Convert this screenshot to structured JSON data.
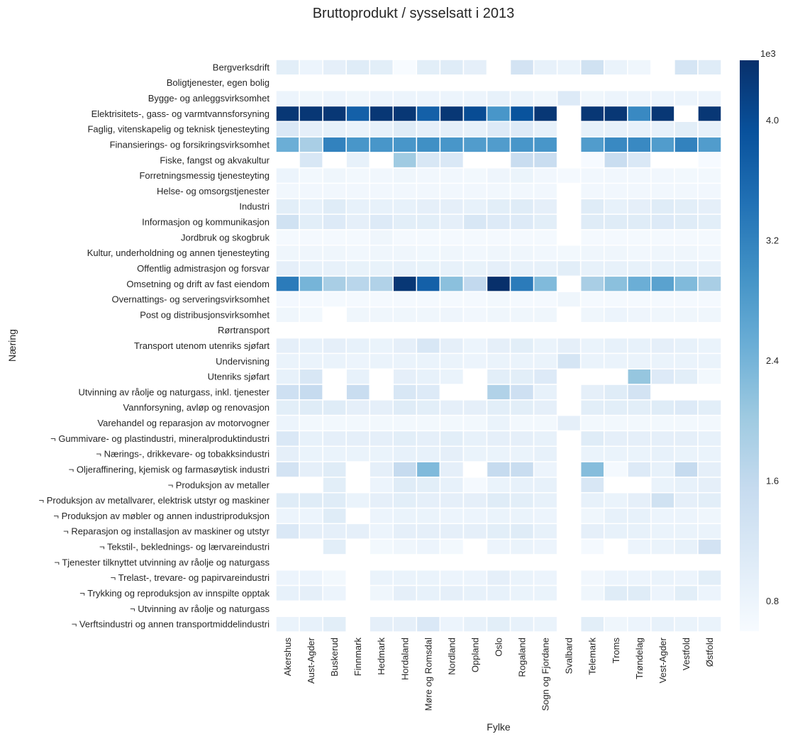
{
  "chart_data": {
    "type": "heatmap",
    "title": "Bruttoprodukt / sysselsatt i 2013",
    "xlabel": "Fylke",
    "ylabel": "Næring",
    "x": [
      "Akershus",
      "Aust-Agder",
      "Buskerud",
      "Finnmark",
      "Hedmark",
      "Hordaland",
      "Møre og Romsdal",
      "Nordland",
      "Oppland",
      "Oslo",
      "Rogaland",
      "Sogn og Fjordane",
      "Svalbard",
      "Telemark",
      "Troms",
      "Trøndelag",
      "Vest-Agder",
      "Vestfold",
      "Østfold"
    ],
    "y": [
      "Bergverksdrift",
      "Boligtjenester, egen bolig",
      "Bygge- og anleggsvirksomhet",
      "Elektrisitets-, gass- og varmtvannsforsyning",
      "Faglig, vitenskapelig og teknisk tjenesteyting",
      "Finansierings- og forsikringsvirksomhet",
      "Fiske, fangst og akvakultur",
      "Forretningsmessig tjenesteyting",
      "Helse- og omsorgstjenester",
      "Industri",
      "Informasjon og kommunikasjon",
      "Jordbruk og skogbruk",
      "Kultur, underholdning og annen tjenesteyting",
      "Offentlig admistrasjon og forsvar",
      "Omsetning og drift av fast eiendom",
      "Overnattings- og serveringsvirksomhet",
      "Post og distribusjonsvirksomhet",
      "Rørtransport",
      "Transport utenom utenriks sjøfart",
      "Undervisning",
      "Utenriks sjøfart",
      "Utvinning av råolje og naturgass, inkl. tjenester",
      "Vannforsyning, avløp og renovasjon",
      "Varehandel og reparasjon av motorvogner",
      "¬ Gummivare- og plastindustri, mineralproduktindustri",
      "¬ Nærings-, drikkevare- og tobakksindustri",
      "¬ Oljeraffinering, kjemisk og farmasøytisk industri",
      "¬ Produksjon av metaller",
      "¬ Produksjon av metallvarer, elektrisk utstyr og maskiner",
      "¬ Produksjon av møbler og annen industriproduksjon",
      "¬ Reparasjon og installasjon av maskiner og utstyr",
      "¬ Tekstil-, beklednings- og lærvareindustri",
      "¬ Tjenester tilknyttet utvinning av råolje og naturgass",
      "¬ Trelast-, trevare- og papirvareindustri",
      "¬ Trykking og reproduksjon av innspilte opptak",
      "¬ Utvinning av råolje og naturgass",
      "¬ Verftsindustri og annen transportmiddelindustri"
    ],
    "values": [
      [
        1000,
        800,
        950,
        1050,
        1000,
        600,
        1000,
        1050,
        950,
        null,
        1300,
        900,
        850,
        1350,
        850,
        750,
        null,
        1250,
        1050
      ],
      [
        null,
        null,
        null,
        null,
        null,
        null,
        null,
        null,
        null,
        null,
        null,
        null,
        null,
        null,
        null,
        null,
        null,
        null,
        null
      ],
      [
        800,
        750,
        800,
        750,
        800,
        800,
        800,
        800,
        800,
        900,
        850,
        750,
        1100,
        750,
        800,
        800,
        800,
        800,
        800
      ],
      [
        4300,
        4300,
        4300,
        3700,
        4300,
        4300,
        3700,
        4300,
        4000,
        2900,
        3900,
        4300,
        null,
        4300,
        4300,
        3100,
        4300,
        null,
        4300
      ],
      [
        1150,
        950,
        900,
        850,
        900,
        1050,
        950,
        950,
        900,
        1100,
        1100,
        900,
        null,
        900,
        900,
        900,
        900,
        1000,
        900
      ],
      [
        2500,
        1900,
        3200,
        2900,
        2900,
        2900,
        3000,
        2900,
        2800,
        2800,
        2900,
        2900,
        null,
        2800,
        3100,
        3100,
        2800,
        3200,
        2800
      ],
      [
        null,
        1200,
        null,
        900,
        null,
        2000,
        1200,
        1150,
        null,
        null,
        1500,
        1500,
        null,
        620,
        1500,
        1150,
        null,
        null,
        620
      ],
      [
        800,
        700,
        750,
        700,
        720,
        750,
        720,
        720,
        700,
        770,
        820,
        720,
        650,
        720,
        720,
        720,
        720,
        700,
        700
      ],
      [
        720,
        720,
        720,
        720,
        720,
        720,
        720,
        720,
        720,
        720,
        720,
        720,
        null,
        720,
        720,
        720,
        720,
        720,
        720
      ],
      [
        1000,
        900,
        1050,
        900,
        900,
        900,
        950,
        950,
        900,
        1000,
        1050,
        950,
        null,
        1050,
        900,
        950,
        1050,
        1000,
        950
      ],
      [
        1350,
        1000,
        1100,
        950,
        1100,
        1000,
        1000,
        950,
        1200,
        1100,
        1100,
        1000,
        null,
        1050,
        1050,
        1050,
        1100,
        1050,
        1000
      ],
      [
        650,
        650,
        650,
        650,
        750,
        650,
        650,
        650,
        650,
        650,
        650,
        650,
        null,
        650,
        650,
        650,
        650,
        650,
        650
      ],
      [
        750,
        750,
        750,
        720,
        750,
        750,
        730,
        750,
        720,
        750,
        750,
        720,
        700,
        750,
        750,
        720,
        750,
        750,
        720
      ],
      [
        950,
        900,
        900,
        880,
        880,
        900,
        880,
        900,
        880,
        950,
        900,
        900,
        1000,
        900,
        900,
        900,
        900,
        900,
        900
      ],
      [
        3300,
        2400,
        1900,
        1700,
        1800,
        4300,
        3700,
        2200,
        1600,
        4400,
        3300,
        2300,
        null,
        1900,
        2200,
        2500,
        2700,
        2300,
        1900
      ],
      [
        680,
        650,
        650,
        650,
        650,
        650,
        650,
        650,
        650,
        700,
        650,
        650,
        750,
        650,
        650,
        650,
        650,
        650,
        650
      ],
      [
        750,
        700,
        null,
        750,
        750,
        750,
        750,
        780,
        720,
        750,
        750,
        750,
        null,
        750,
        800,
        780,
        760,
        750,
        750
      ],
      [
        null,
        null,
        null,
        null,
        null,
        null,
        null,
        null,
        null,
        null,
        null,
        null,
        null,
        null,
        null,
        null,
        null,
        null,
        null
      ],
      [
        950,
        900,
        950,
        900,
        850,
        950,
        1200,
        950,
        800,
        950,
        1000,
        850,
        950,
        850,
        900,
        900,
        950,
        900,
        850
      ],
      [
        850,
        850,
        850,
        800,
        850,
        850,
        850,
        850,
        800,
        850,
        850,
        850,
        1250,
        850,
        850,
        850,
        850,
        850,
        850
      ],
      [
        900,
        1200,
        null,
        900,
        null,
        950,
        900,
        850,
        null,
        1000,
        1000,
        1100,
        null,
        null,
        null,
        2100,
        1100,
        1000,
        700
      ],
      [
        1400,
        1550,
        null,
        1500,
        null,
        1200,
        1100,
        null,
        null,
        1800,
        1400,
        900,
        null,
        950,
        1050,
        1300,
        null,
        null,
        null
      ],
      [
        1000,
        1050,
        1050,
        950,
        950,
        1050,
        1000,
        950,
        950,
        1000,
        1000,
        950,
        null,
        1000,
        1000,
        1000,
        1050,
        1100,
        1000
      ],
      [
        800,
        700,
        700,
        700,
        700,
        700,
        700,
        700,
        700,
        850,
        700,
        700,
        950,
        700,
        700,
        700,
        700,
        700,
        700
      ],
      [
        1150,
        900,
        950,
        950,
        950,
        1000,
        950,
        1000,
        900,
        950,
        950,
        900,
        null,
        1050,
        950,
        950,
        950,
        950,
        900
      ],
      [
        950,
        850,
        850,
        850,
        850,
        900,
        900,
        950,
        850,
        850,
        850,
        900,
        null,
        850,
        850,
        850,
        900,
        850,
        850
      ],
      [
        1300,
        950,
        1050,
        null,
        950,
        1550,
        2300,
        950,
        null,
        1550,
        1500,
        800,
        null,
        2250,
        650,
        1100,
        900,
        1550,
        950
      ],
      [
        null,
        null,
        1000,
        null,
        800,
        1050,
        1000,
        900,
        650,
        850,
        900,
        900,
        null,
        1200,
        null,
        null,
        850,
        900,
        950
      ],
      [
        1050,
        1050,
        1050,
        850,
        950,
        1000,
        950,
        950,
        950,
        1050,
        1000,
        900,
        null,
        900,
        850,
        950,
        1350,
        950,
        1000
      ],
      [
        800,
        800,
        1050,
        null,
        800,
        850,
        850,
        800,
        800,
        850,
        850,
        800,
        null,
        750,
        900,
        900,
        800,
        800,
        750
      ],
      [
        1150,
        950,
        950,
        950,
        800,
        950,
        950,
        950,
        950,
        1000,
        1050,
        900,
        null,
        950,
        900,
        900,
        850,
        850,
        850
      ],
      [
        null,
        null,
        1000,
        null,
        700,
        750,
        800,
        700,
        null,
        800,
        850,
        800,
        null,
        650,
        null,
        800,
        850,
        900,
        1300
      ],
      [
        null,
        null,
        null,
        null,
        null,
        null,
        null,
        null,
        null,
        null,
        null,
        null,
        null,
        null,
        null,
        null,
        null,
        null,
        null
      ],
      [
        800,
        800,
        700,
        null,
        850,
        850,
        850,
        800,
        800,
        950,
        850,
        800,
        null,
        720,
        800,
        800,
        850,
        800,
        1000
      ],
      [
        900,
        950,
        800,
        null,
        750,
        950,
        900,
        950,
        900,
        900,
        850,
        850,
        null,
        750,
        1050,
        1050,
        800,
        1000,
        800
      ],
      [
        null,
        null,
        null,
        null,
        null,
        null,
        null,
        null,
        null,
        null,
        null,
        null,
        null,
        null,
        null,
        null,
        null,
        null,
        null
      ],
      [
        850,
        900,
        1000,
        null,
        950,
        950,
        1150,
        800,
        900,
        1000,
        900,
        850,
        null,
        1000,
        750,
        800,
        900,
        850,
        850
      ]
    ],
    "colorbar": {
      "ticks": [
        0.8,
        1.6,
        2.4,
        3.2,
        4.0
      ],
      "multiplier_label": "1e3",
      "vmin": 0.6,
      "vmax": 4.4
    },
    "colormap": [
      "#f7fbff",
      "#deebf7",
      "#c6dbef",
      "#9ecae1",
      "#6baed6",
      "#4292c6",
      "#2171b5",
      "#08519c",
      "#08306b"
    ]
  }
}
